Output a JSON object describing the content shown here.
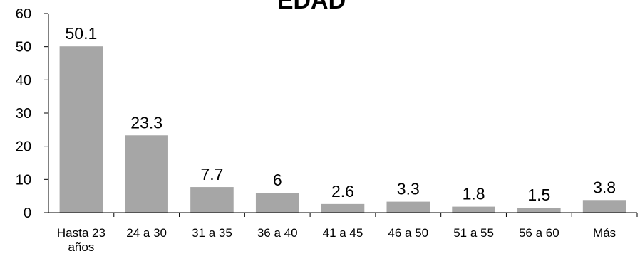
{
  "chart_data": {
    "type": "bar",
    "title": "EDAD",
    "categories": [
      [
        "Hasta 23",
        "años"
      ],
      [
        "24 a 30"
      ],
      [
        "31 a 35"
      ],
      [
        "36 a 40"
      ],
      [
        "41 a 45"
      ],
      [
        "46 a 50"
      ],
      [
        "51 a 55"
      ],
      [
        "56 a 60"
      ],
      [
        "Más"
      ]
    ],
    "values": [
      50.1,
      23.3,
      7.7,
      6,
      2.6,
      3.3,
      1.8,
      1.5,
      3.8
    ],
    "value_labels": [
      "50.1",
      "23.3",
      "7.7",
      "6",
      "2.6",
      "3.3",
      "1.8",
      "1.5",
      "3.8"
    ],
    "y_ticks": [
      0,
      10,
      20,
      30,
      40,
      50,
      60
    ],
    "ylim": [
      0,
      60
    ],
    "grid": false,
    "legend": "none",
    "bar_color": "#a6a6a6",
    "axis_color": "#000000"
  }
}
